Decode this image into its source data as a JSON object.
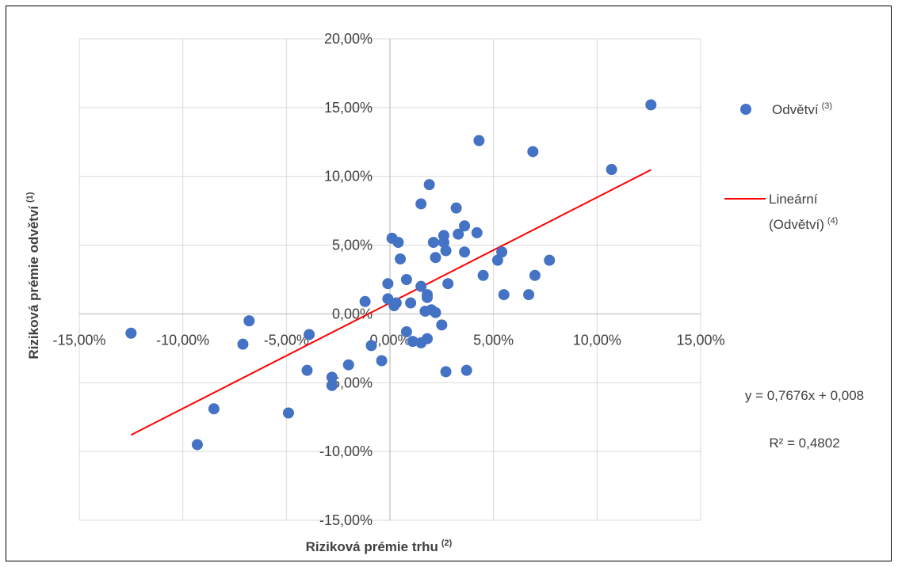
{
  "chart_data": {
    "type": "scatter",
    "xlabel": "Riziková prémie trhu",
    "xlabel_sup": "(2)",
    "ylabel": "Riziková prémie odvětví",
    "ylabel_sup": "(1)",
    "xlim": [
      -0.15,
      0.15
    ],
    "ylim": [
      -0.15,
      0.2
    ],
    "x_ticks": [
      {
        "value": -0.15,
        "label": "-15,00%"
      },
      {
        "value": -0.1,
        "label": "-10,00%"
      },
      {
        "value": -0.05,
        "label": "-5,00%"
      },
      {
        "value": 0.0,
        "label": "0,00%"
      },
      {
        "value": 0.05,
        "label": "5,00%"
      },
      {
        "value": 0.1,
        "label": "10,00%"
      },
      {
        "value": 0.15,
        "label": "15,00%"
      }
    ],
    "y_ticks": [
      {
        "value": 0.2,
        "label": "20,00%"
      },
      {
        "value": 0.15,
        "label": "15,00%"
      },
      {
        "value": 0.1,
        "label": "10,00%"
      },
      {
        "value": 0.05,
        "label": "5,00%"
      },
      {
        "value": 0.0,
        "label": "0,00%"
      },
      {
        "value": -0.05,
        "label": "-5,00%"
      },
      {
        "value": -0.1,
        "label": "-10,00%"
      },
      {
        "value": -0.15,
        "label": "-15,00%"
      }
    ],
    "grid": true,
    "marker_color": "#4472C4",
    "trend_color": "#FF0000",
    "series": [
      {
        "name": "Odvětví",
        "name_sup": "(3)",
        "points": [
          [
            -0.125,
            -0.014
          ],
          [
            -0.093,
            -0.095
          ],
          [
            -0.085,
            -0.069
          ],
          [
            -0.071,
            -0.022
          ],
          [
            -0.068,
            -0.005
          ],
          [
            -0.049,
            -0.072
          ],
          [
            -0.04,
            -0.041
          ],
          [
            -0.039,
            -0.015
          ],
          [
            -0.028,
            -0.046
          ],
          [
            -0.028,
            -0.052
          ],
          [
            -0.02,
            -0.037
          ],
          [
            -0.012,
            0.009
          ],
          [
            -0.009,
            -0.023
          ],
          [
            -0.004,
            -0.034
          ],
          [
            -0.001,
            0.011
          ],
          [
            -0.001,
            0.022
          ],
          [
            0.001,
            0.055
          ],
          [
            0.002,
            0.006
          ],
          [
            0.003,
            0.008
          ],
          [
            0.004,
            0.052
          ],
          [
            0.005,
            0.04
          ],
          [
            0.008,
            0.025
          ],
          [
            0.008,
            -0.013
          ],
          [
            0.01,
            0.008
          ],
          [
            0.011,
            -0.02
          ],
          [
            0.015,
            -0.021
          ],
          [
            0.015,
            0.08
          ],
          [
            0.015,
            0.02
          ],
          [
            0.017,
            0.002
          ],
          [
            0.018,
            0.014
          ],
          [
            0.018,
            -0.018
          ],
          [
            0.018,
            0.012
          ],
          [
            0.019,
            0.094
          ],
          [
            0.02,
            0.003
          ],
          [
            0.021,
            0.052
          ],
          [
            0.022,
            0.001
          ],
          [
            0.022,
            0.041
          ],
          [
            0.025,
            -0.008
          ],
          [
            0.026,
            0.052
          ],
          [
            0.026,
            0.057
          ],
          [
            0.027,
            0.046
          ],
          [
            0.027,
            -0.042
          ],
          [
            0.028,
            0.022
          ],
          [
            0.032,
            0.077
          ],
          [
            0.033,
            0.058
          ],
          [
            0.036,
            0.064
          ],
          [
            0.036,
            0.045
          ],
          [
            0.037,
            -0.041
          ],
          [
            0.042,
            0.059
          ],
          [
            0.043,
            0.126
          ],
          [
            0.045,
            0.028
          ],
          [
            0.052,
            0.039
          ],
          [
            0.054,
            0.045
          ],
          [
            0.055,
            0.014
          ],
          [
            0.067,
            0.014
          ],
          [
            0.069,
            0.118
          ],
          [
            0.07,
            0.028
          ],
          [
            0.077,
            0.039
          ],
          [
            0.107,
            0.105
          ],
          [
            0.126,
            0.152
          ]
        ]
      }
    ],
    "trendline": {
      "name": "Lineární (Odvětví)",
      "name_line1": "Lineární",
      "name_line2": "(Odvětví)",
      "name_sup": "(4)",
      "slope": 0.7676,
      "intercept": 0.008,
      "x_range": [
        -0.125,
        0.126
      ],
      "equation": "y = 0,7676x + 0,008",
      "r_squared": "R² = 0,4802"
    }
  }
}
